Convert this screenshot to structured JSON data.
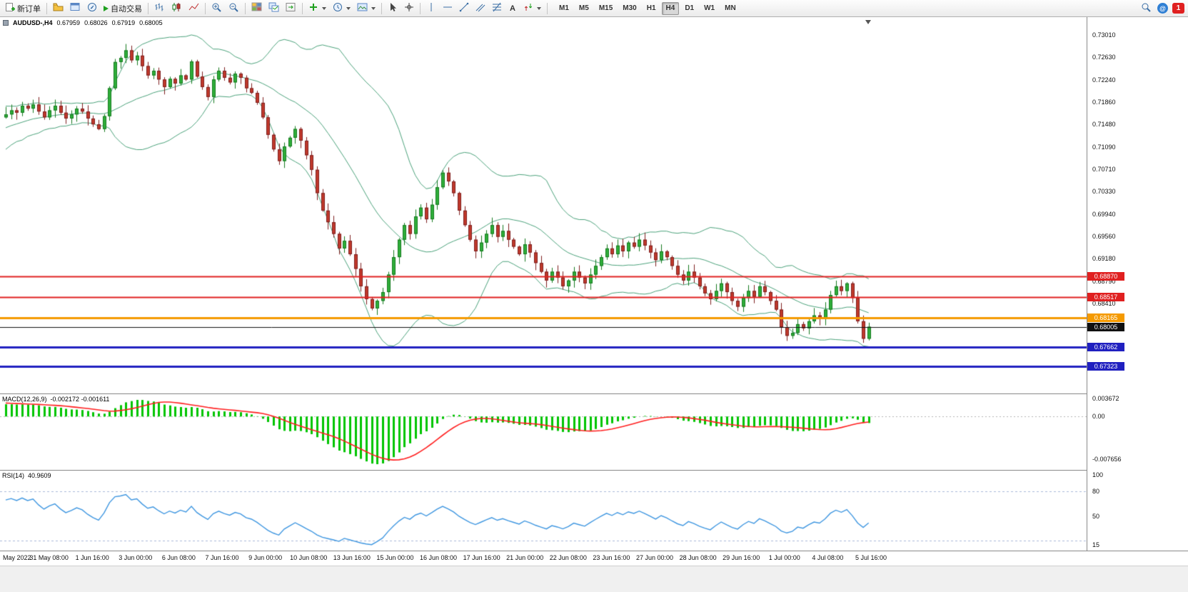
{
  "toolbar": {
    "new_order": "新订单",
    "auto_trading": "自动交易",
    "text_tool_label": "A",
    "notification_count": "1",
    "timeframes": [
      "M1",
      "M5",
      "M15",
      "M30",
      "H1",
      "H4",
      "D1",
      "W1",
      "MN"
    ],
    "active_timeframe": "H4"
  },
  "chart": {
    "symbol_period": "AUDUSD-,H4",
    "ohlc": {
      "open": "0.67959",
      "high": "0.68026",
      "low": "0.67919",
      "close": "0.68005"
    },
    "price_axis_labels": [
      "0.73010",
      "0.72630",
      "0.72240",
      "0.71860",
      "0.71480",
      "0.71090",
      "0.70710",
      "0.70330",
      "0.69940",
      "0.69560",
      "0.69180",
      "0.68790",
      "0.68410"
    ],
    "hlines": [
      {
        "label": "0.68870",
        "value": 0.6887,
        "color": "#e02020",
        "width": 2
      },
      {
        "label": "0.68517",
        "value": 0.68517,
        "color": "#e02020",
        "width": 2
      },
      {
        "label": "0.68165",
        "value": 0.68165,
        "color": "#f59a00",
        "width": 3
      },
      {
        "label": "0.68005",
        "value": 0.68005,
        "color": "#111111",
        "width": 1
      },
      {
        "label": "0.67662",
        "value": 0.67662,
        "color": "#2020c0",
        "width": 3
      },
      {
        "label": "0.67323",
        "value": 0.67323,
        "color": "#2020c0",
        "width": 3
      }
    ],
    "time_axis_labels": [
      "May 2022",
      "31 May 08:00",
      "1 Jun 16:00",
      "3 Jun 00:00",
      "6 Jun 08:00",
      "7 Jun 16:00",
      "9 Jun 00:00",
      "10 Jun 08:00",
      "13 Jun 16:00",
      "15 Jun 00:00",
      "16 Jun 08:00",
      "17 Jun 16:00",
      "21 Jun 00:00",
      "22 Jun 08:00",
      "23 Jun 16:00",
      "27 Jun 00:00",
      "28 Jun 08:00",
      "29 Jun 16:00",
      "1 Jul 00:00",
      "4 Jul 08:00",
      "5 Jul 16:00"
    ]
  },
  "macd": {
    "title": "MACD(12,26,9)",
    "values": "-0.002172 -0.001611",
    "axis_labels": [
      "0.003672",
      "0.00",
      "-0.007656"
    ]
  },
  "rsi": {
    "title": "RSI(14)",
    "value": "40.9609",
    "axis_labels": [
      "100",
      "80",
      "50",
      "15"
    ]
  },
  "chart_data": {
    "type": "candlestick",
    "symbol": "AUDUSD",
    "period": "H4",
    "price_range": {
      "top": 0.7332,
      "bottom": 0.6686
    },
    "indicators": {
      "bollinger": {
        "period": 20,
        "deviation": 2
      },
      "macd": {
        "fast": 12,
        "slow": 26,
        "signal": 9
      },
      "rsi": {
        "period": 14
      }
    },
    "colors": {
      "bull": "#2fae3a",
      "bull_border": "#157a1e",
      "bear": "#c0392b",
      "bear_border": "#7e1f1f",
      "bollinger": "#4aa17a",
      "macd_hist": "#00c400",
      "macd_signal": "#ff1e1e",
      "rsi_line": "#3e96e0"
    },
    "pre_closes": [
      0.704,
      0.7048,
      0.7042,
      0.7055,
      0.7068,
      0.706,
      0.7075,
      0.7088,
      0.708,
      0.7095,
      0.7105,
      0.7098,
      0.711,
      0.7122,
      0.7115,
      0.7128,
      0.7138,
      0.713,
      0.7142,
      0.715,
      0.7144,
      0.7155,
      0.7148,
      0.7158,
      0.715,
      0.716,
      0.7152,
      0.7162,
      0.7155,
      0.716
    ],
    "closes": [
      0.7165,
      0.7172,
      0.7168,
      0.718,
      0.7175,
      0.7182,
      0.717,
      0.716,
      0.7172,
      0.718,
      0.7168,
      0.7158,
      0.7165,
      0.7175,
      0.717,
      0.7158,
      0.7148,
      0.714,
      0.7162,
      0.721,
      0.7255,
      0.7262,
      0.7275,
      0.7258,
      0.7266,
      0.7248,
      0.7232,
      0.724,
      0.7225,
      0.7212,
      0.7226,
      0.7218,
      0.7232,
      0.7225,
      0.7256,
      0.723,
      0.7212,
      0.7195,
      0.7225,
      0.724,
      0.7228,
      0.722,
      0.7235,
      0.7228,
      0.721,
      0.7202,
      0.7185,
      0.716,
      0.713,
      0.7105,
      0.7085,
      0.711,
      0.7125,
      0.714,
      0.712,
      0.7095,
      0.707,
      0.703,
      0.7,
      0.698,
      0.696,
      0.6935,
      0.6948,
      0.6925,
      0.69,
      0.687,
      0.6848,
      0.6832,
      0.6845,
      0.686,
      0.689,
      0.692,
      0.695,
      0.6975,
      0.696,
      0.699,
      0.7005,
      0.6985,
      0.701,
      0.704,
      0.7065,
      0.705,
      0.703,
      0.7,
      0.6975,
      0.695,
      0.693,
      0.6945,
      0.696,
      0.6975,
      0.6955,
      0.6965,
      0.695,
      0.6938,
      0.6925,
      0.6942,
      0.6928,
      0.691,
      0.6895,
      0.688,
      0.6895,
      0.6885,
      0.687,
      0.688,
      0.6895,
      0.6885,
      0.6875,
      0.689,
      0.6905,
      0.692,
      0.6935,
      0.6925,
      0.694,
      0.693,
      0.6945,
      0.6938,
      0.695,
      0.694,
      0.6928,
      0.6915,
      0.693,
      0.692,
      0.6905,
      0.689,
      0.688,
      0.6895,
      0.6885,
      0.687,
      0.6858,
      0.6848,
      0.6862,
      0.6875,
      0.686,
      0.6845,
      0.6835,
      0.685,
      0.6862,
      0.6852,
      0.687,
      0.686,
      0.6845,
      0.683,
      0.68,
      0.6785,
      0.679,
      0.6805,
      0.6798,
      0.681,
      0.682,
      0.6815,
      0.683,
      0.6855,
      0.687,
      0.6862,
      0.6875,
      0.685,
      0.681,
      0.678,
      0.68005
    ]
  }
}
